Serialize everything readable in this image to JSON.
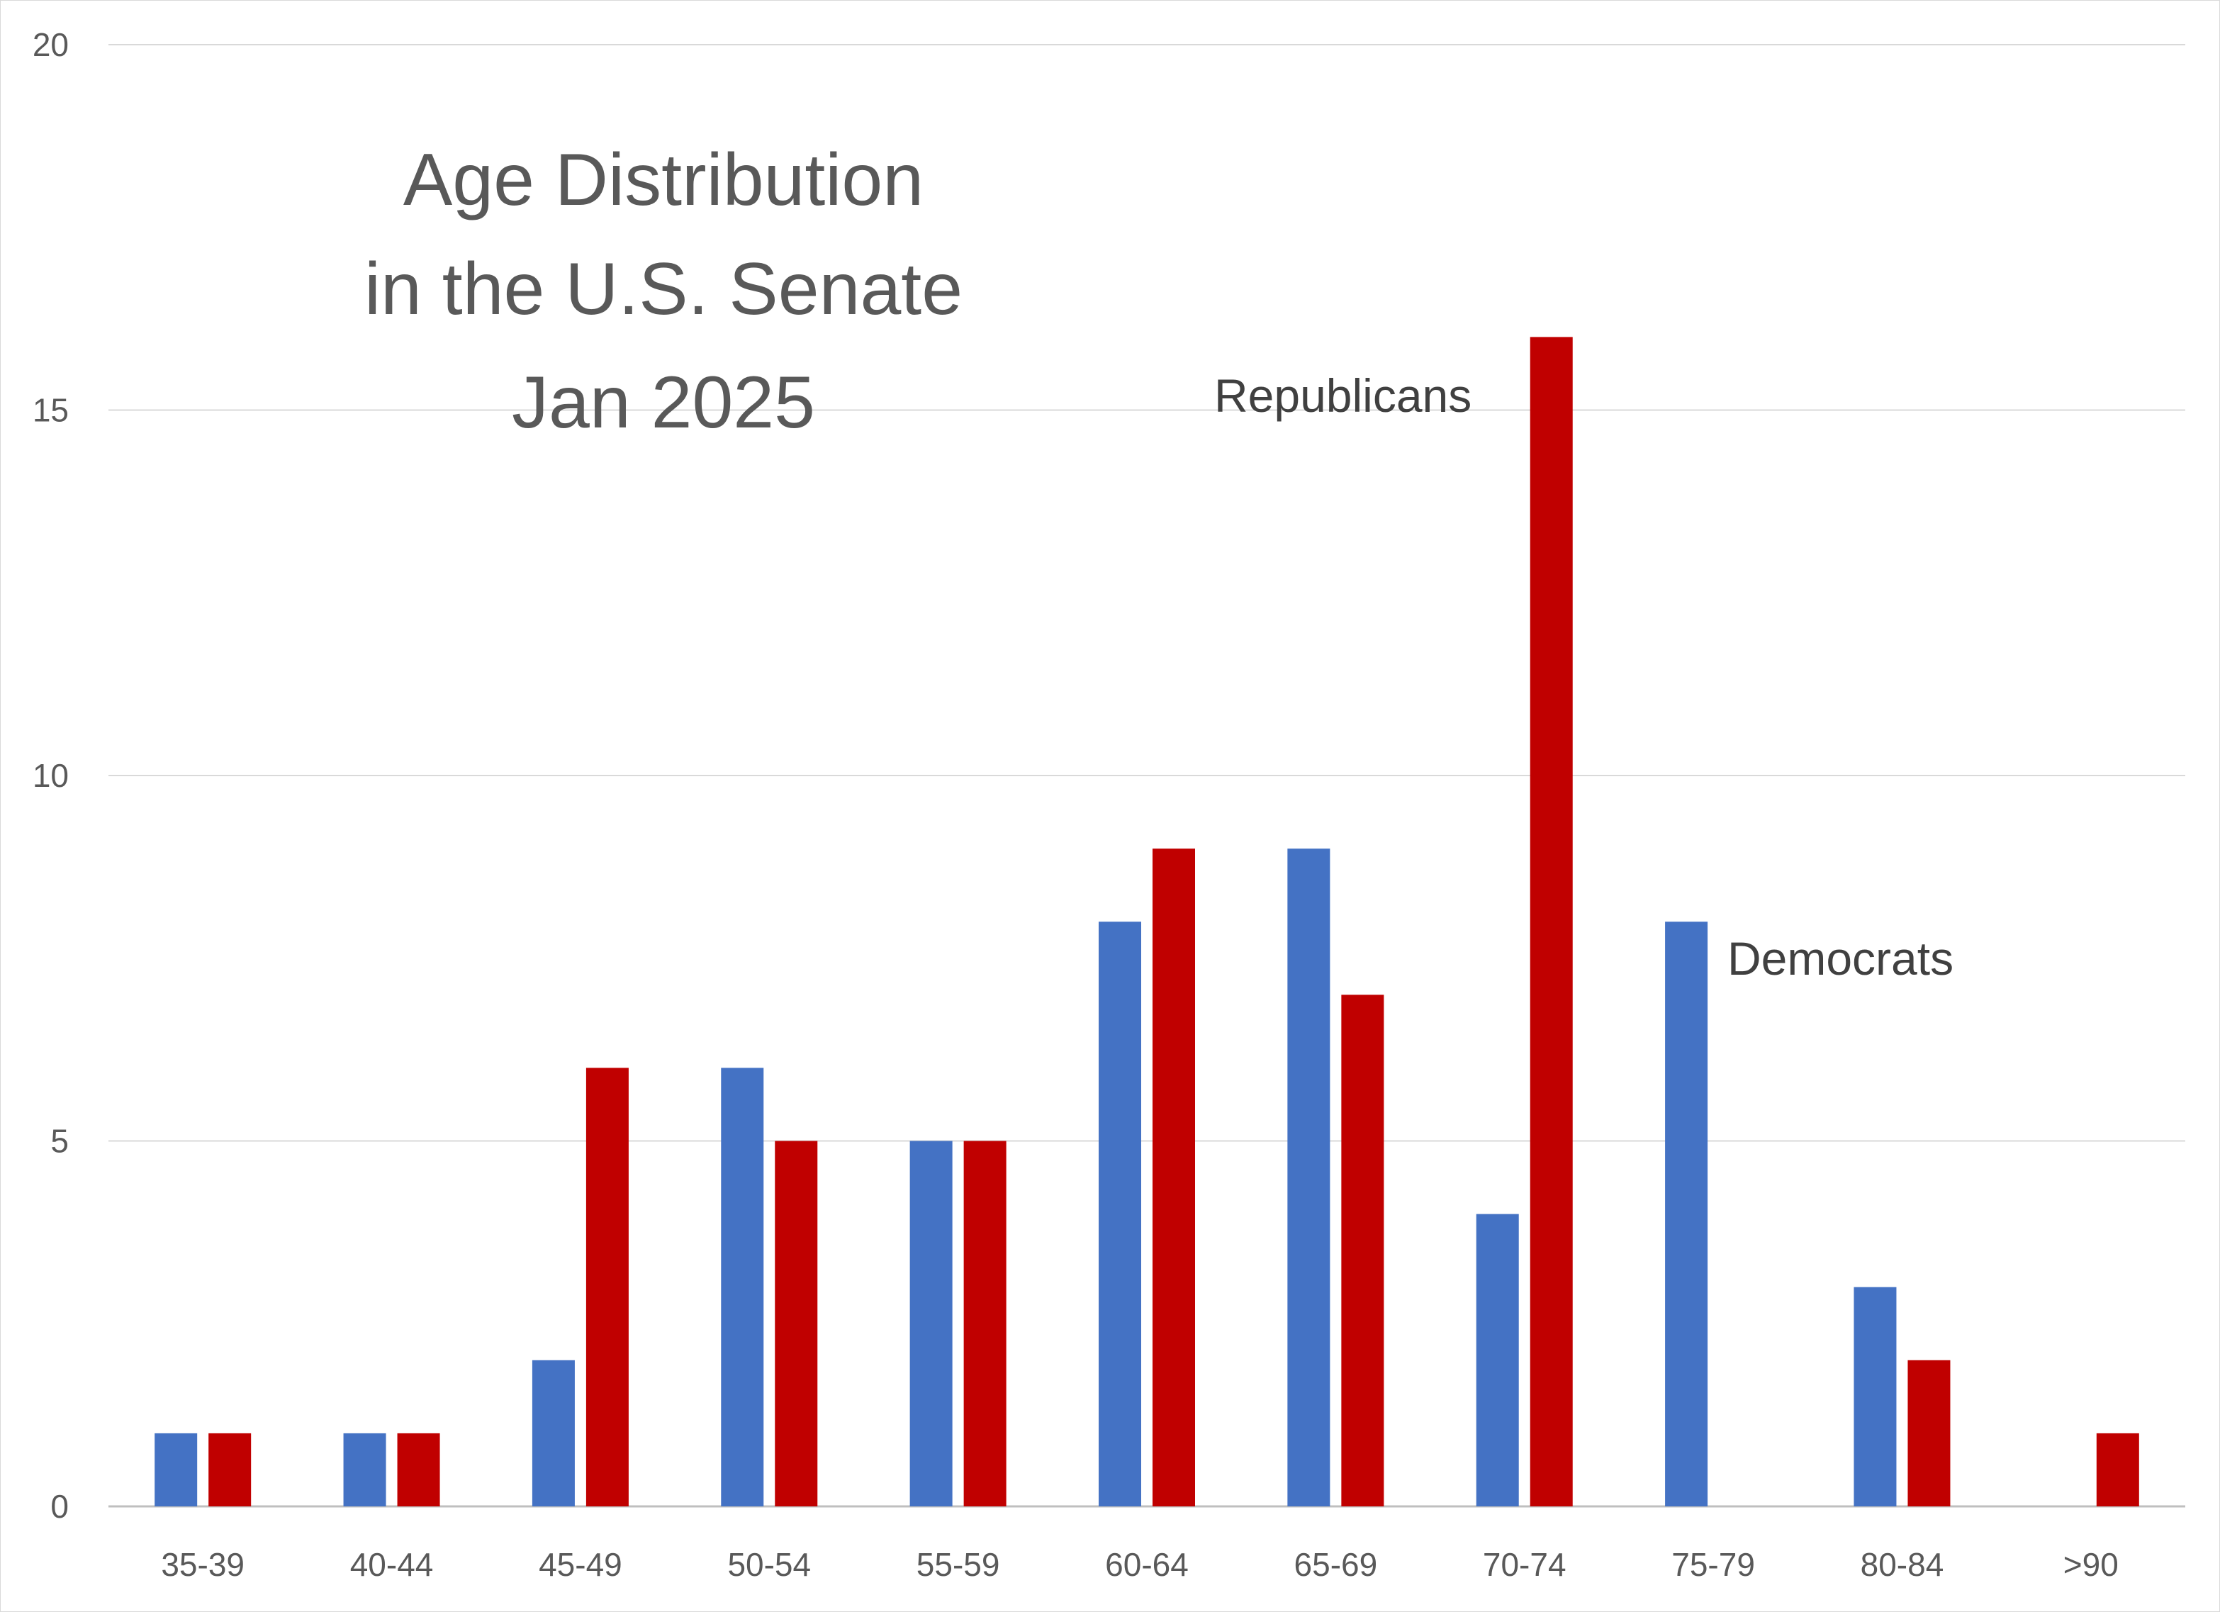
{
  "chart_data": {
    "type": "bar",
    "title_lines": [
      "Age Distribution",
      "in the U.S. Senate",
      "Jan 2025"
    ],
    "categories": [
      "35-39",
      "40-44",
      "45-49",
      "50-54",
      "55-59",
      "60-64",
      "65-69",
      "70-74",
      "75-79",
      "80-84",
      ">90"
    ],
    "series": [
      {
        "name": "Democrats",
        "color": "#4472c4",
        "values": [
          1,
          1,
          2,
          6,
          5,
          8,
          9,
          4,
          8,
          3,
          0
        ]
      },
      {
        "name": "Republicans",
        "color": "#c00000",
        "values": [
          1,
          1,
          6,
          5,
          5,
          9,
          7,
          16,
          0,
          2,
          1
        ]
      }
    ],
    "ylim": [
      0,
      20
    ],
    "yticks": [
      0,
      5,
      10,
      15,
      20
    ],
    "grid": true,
    "xlabel": "",
    "ylabel": ""
  }
}
